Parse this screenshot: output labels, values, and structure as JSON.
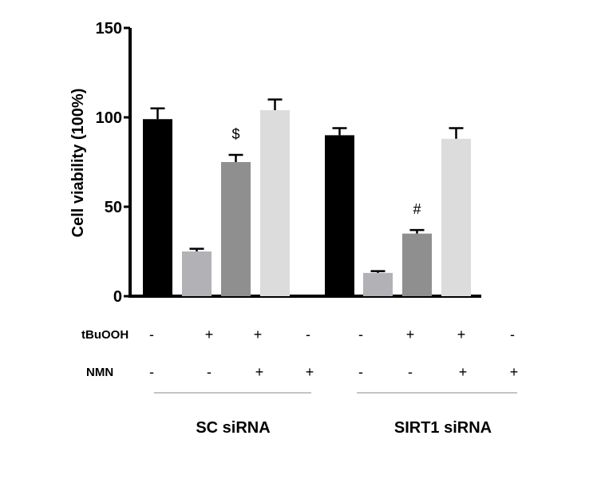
{
  "chart_data": {
    "type": "bar",
    "ylabel": "Cell viability (100%)",
    "ylim": [
      0,
      150
    ],
    "yticks": [
      0,
      50,
      100,
      150
    ],
    "grid": false,
    "groups": [
      {
        "label": "SC siRNA",
        "tBuOOH": [
          "-",
          "+",
          "+",
          "-"
        ],
        "NMN": [
          "-",
          "-",
          "+",
          "+"
        ],
        "values": [
          99,
          25,
          75,
          104
        ],
        "errors": [
          6,
          1.5,
          4,
          6
        ],
        "annotations": [
          "",
          "",
          "$",
          ""
        ]
      },
      {
        "label": "SIRT1 siRNA",
        "tBuOOH": [
          "-",
          "+",
          "+",
          "-"
        ],
        "NMN": [
          "-",
          "-",
          "+",
          "+"
        ],
        "values": [
          90,
          13,
          35,
          88
        ],
        "errors": [
          4,
          1,
          2,
          6
        ],
        "annotations": [
          "",
          "",
          "#",
          ""
        ]
      }
    ],
    "row_labels": [
      "tBuOOH",
      "NMN"
    ],
    "bar_colors": [
      "#000000",
      "#b2b2b6",
      "#8f8f8f",
      "#dcdcdc"
    ]
  }
}
